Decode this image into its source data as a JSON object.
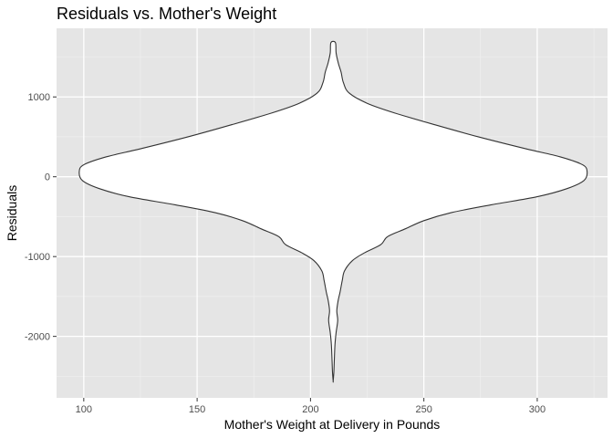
{
  "chart_data": {
    "type": "violin",
    "title": "Residuals vs. Mother's Weight",
    "xlabel": "Mother's Weight at Delivery in Pounds",
    "ylabel": "Residuals",
    "xlim": [
      88,
      331
    ],
    "ylim": [
      -2770,
      1860
    ],
    "x_ticks": [
      100,
      150,
      200,
      250,
      300
    ],
    "x_minor": [
      125,
      175,
      225,
      275,
      325
    ],
    "y_ticks": [
      1000,
      0,
      -1000,
      -2000
    ],
    "y_minor": [
      1500,
      500,
      -500,
      -1500,
      -2500
    ],
    "grid": true,
    "colors": {
      "panel": "#e5e5e5",
      "grid": "#ffffff",
      "fill": "#ffffff",
      "outline": "#333333"
    },
    "violin": {
      "center_x": 210,
      "profile": [
        {
          "y": 1680,
          "x_right": 211.0
        },
        {
          "y": 1550,
          "x_right": 211.3
        },
        {
          "y": 1420,
          "x_right": 212.3
        },
        {
          "y": 1310,
          "x_right": 213.5
        },
        {
          "y": 1180,
          "x_right": 214.5
        },
        {
          "y": 1050,
          "x_right": 217.0
        },
        {
          "y": 920,
          "x_right": 225.0
        },
        {
          "y": 800,
          "x_right": 237.0
        },
        {
          "y": 650,
          "x_right": 255.0
        },
        {
          "y": 500,
          "x_right": 274.0
        },
        {
          "y": 350,
          "x_right": 295.0
        },
        {
          "y": 250,
          "x_right": 310.0
        },
        {
          "y": 150,
          "x_right": 320.0
        },
        {
          "y": 60,
          "x_right": 322.0
        },
        {
          "y": -50,
          "x_right": 320.5
        },
        {
          "y": -150,
          "x_right": 313.0
        },
        {
          "y": -250,
          "x_right": 300.0
        },
        {
          "y": -350,
          "x_right": 280.0
        },
        {
          "y": -450,
          "x_right": 262.0
        },
        {
          "y": -550,
          "x_right": 250.0
        },
        {
          "y": -650,
          "x_right": 242.0
        },
        {
          "y": -750,
          "x_right": 234.0
        },
        {
          "y": -850,
          "x_right": 231.0
        },
        {
          "y": -950,
          "x_right": 224.0
        },
        {
          "y": -1050,
          "x_right": 218.5
        },
        {
          "y": -1180,
          "x_right": 215.0
        },
        {
          "y": -1300,
          "x_right": 214.0
        },
        {
          "y": -1450,
          "x_right": 213.0
        },
        {
          "y": -1550,
          "x_right": 212.2
        },
        {
          "y": -1680,
          "x_right": 211.6
        },
        {
          "y": -1800,
          "x_right": 212.0
        },
        {
          "y": -1950,
          "x_right": 211.3
        },
        {
          "y": -2100,
          "x_right": 210.8
        },
        {
          "y": -2300,
          "x_right": 210.5
        },
        {
          "y": -2450,
          "x_right": 210.3
        },
        {
          "y": -2560,
          "x_right": 210.0
        }
      ]
    }
  }
}
